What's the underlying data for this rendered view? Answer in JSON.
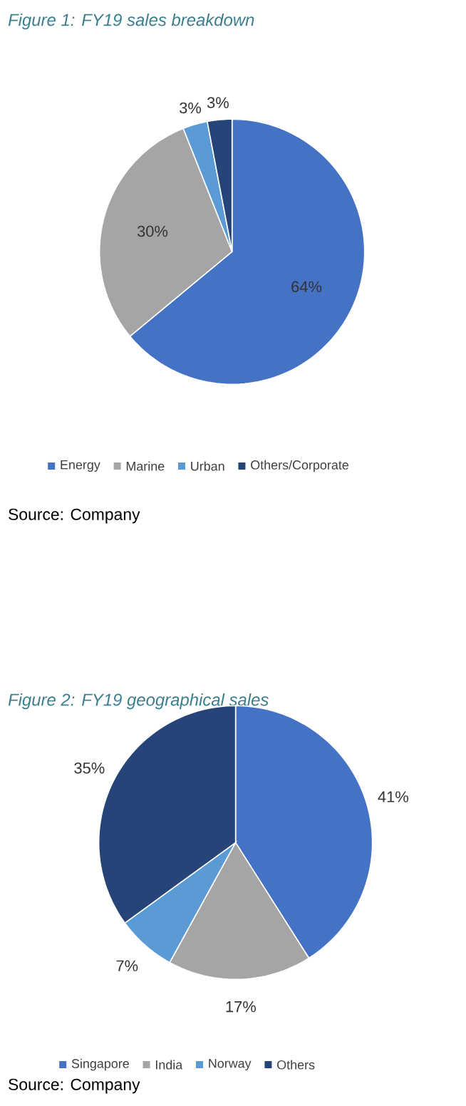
{
  "chart_data": [
    {
      "type": "pie",
      "title": "Figure 1: FY19 sales breakdown",
      "categories": [
        "Energy",
        "Marine",
        "Urban",
        "Others/Corporate"
      ],
      "values": [
        64,
        30,
        3,
        3
      ],
      "colors": [
        "#4472c4",
        "#a5a5a5",
        "#5b9bd5",
        "#264478"
      ],
      "value_labels": [
        "64%",
        "30%",
        "3%",
        "3%"
      ],
      "legend": "bottom",
      "annotations": [
        "Source: Company"
      ]
    },
    {
      "type": "pie",
      "title": "Figure 2: FY19 geographical sales",
      "categories": [
        "Singapore",
        "India",
        "Norway",
        "Others"
      ],
      "values": [
        41,
        17,
        7,
        35
      ],
      "colors": [
        "#4472c4",
        "#a5a5a5",
        "#5b9bd5",
        "#264478"
      ],
      "value_labels": [
        "41%",
        "17%",
        "7%",
        "35%"
      ],
      "legend": "bottom",
      "annotations": [
        "Source: Company"
      ]
    }
  ]
}
